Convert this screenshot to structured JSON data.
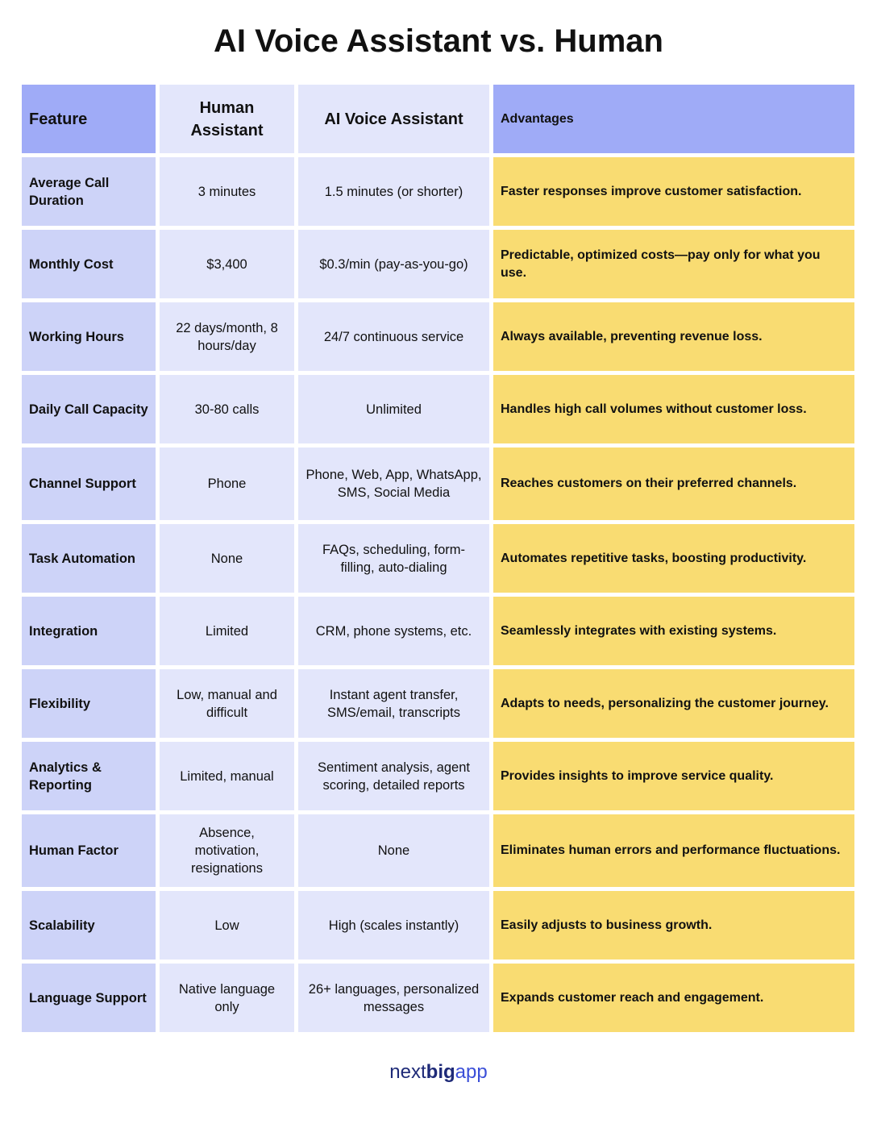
{
  "header": {
    "title": "AI Voice Assistant vs. Human"
  },
  "table": {
    "columns": [
      "Feature",
      "Human Assistant",
      "AI Voice Assistant",
      "Advantages"
    ],
    "rows": [
      [
        "Average Call Duration",
        "3 minutes",
        "1.5 minutes (or shorter)",
        "Faster responses improve customer satisfaction."
      ],
      [
        "Monthly Cost",
        "$3,400",
        "$0.3/min (pay-as-you-go)",
        "Predictable, optimized costs—pay only for what you use."
      ],
      [
        "Working Hours",
        "22 days/month, 8 hours/day",
        "24/7 continuous service",
        "Always available, preventing revenue loss."
      ],
      [
        "Daily Call Capacity",
        "30-80 calls",
        "Unlimited",
        "Handles high call volumes without customer loss."
      ],
      [
        "Channel Support",
        "Phone",
        "Phone, Web, App, WhatsApp, SMS, Social Media",
        "Reaches customers on their preferred channels."
      ],
      [
        "Task Automation",
        "None",
        "FAQs, scheduling, form-filling, auto-dialing",
        "Automates repetitive tasks, boosting productivity."
      ],
      [
        "Integration",
        "Limited",
        "CRM, phone systems, etc.",
        "Seamlessly integrates with existing systems."
      ],
      [
        "Flexibility",
        "Low, manual and difficult",
        "Instant agent transfer, SMS/email, transcripts",
        "Adapts to needs, personalizing the customer journey."
      ],
      [
        "Analytics & Reporting",
        "Limited, manual",
        "Sentiment analysis, agent scoring, detailed reports",
        "Provides insights to improve service quality."
      ],
      [
        "Human Factor",
        "Absence, motivation, resignations",
        "None",
        "Eliminates human errors and performance fluctuations."
      ],
      [
        "Scalability",
        "Low",
        "High (scales instantly)",
        "Easily adjusts to business growth."
      ],
      [
        "Language Support",
        "Native language only",
        "26+ languages, personalized messages",
        "Expands customer reach and engagement."
      ]
    ]
  },
  "footer": {
    "logo": [
      "next",
      "big",
      "app"
    ]
  }
}
